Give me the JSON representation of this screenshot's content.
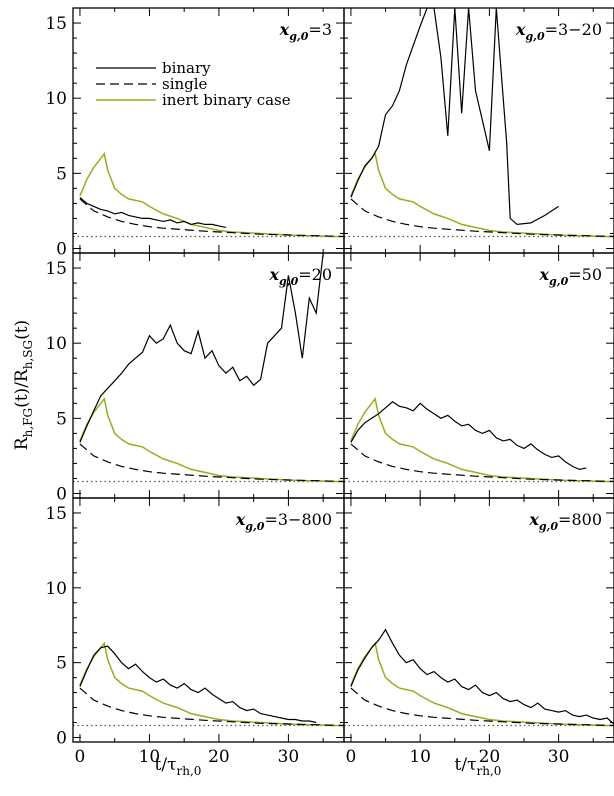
{
  "colors": {
    "binary": "#000000",
    "single": "#000000",
    "inert": "#8db31f",
    "ref": "#555555"
  },
  "axes": {
    "x_title_main": "t/τ",
    "x_title_sub": "rh,0",
    "y_title": "R",
    "y_title_parts": [
      "R",
      "h,FG",
      "(t)/R",
      "h,SG",
      "(t)"
    ],
    "x_ticks": [
      0,
      10,
      20,
      30
    ],
    "y_ticks": [
      0,
      5,
      10,
      15
    ]
  },
  "legend": {
    "entries": [
      {
        "label": "binary",
        "series": "binary"
      },
      {
        "label": "single",
        "series": "single"
      },
      {
        "label": "inert binary case",
        "series": "inert"
      }
    ]
  },
  "chart_data": [
    {
      "type": "line",
      "panel": "x_g0_3",
      "label_main": "x",
      "label_sub": "g,0",
      "label_value": "=3",
      "xlim": [
        -1,
        38
      ],
      "ylim": [
        -0.3,
        16
      ],
      "series": [
        {
          "key": "binary",
          "name": "binary",
          "x": [
            0,
            1,
            2,
            3,
            4,
            5,
            6,
            7,
            8,
            9,
            10,
            11,
            12,
            13,
            14,
            15,
            16,
            17,
            18,
            19,
            20,
            21
          ],
          "y": [
            3.4,
            3.0,
            2.8,
            2.6,
            2.5,
            2.3,
            2.4,
            2.2,
            2.1,
            2.0,
            2.0,
            1.9,
            1.8,
            1.9,
            1.7,
            1.8,
            1.6,
            1.7,
            1.6,
            1.6,
            1.5,
            1.4
          ]
        },
        {
          "key": "single",
          "name": "single",
          "x": [
            0,
            2,
            4,
            6,
            8,
            10,
            12,
            15,
            18,
            22,
            26,
            30,
            34,
            38
          ],
          "y": [
            3.3,
            2.5,
            2.1,
            1.8,
            1.6,
            1.45,
            1.35,
            1.25,
            1.15,
            1.05,
            0.95,
            0.9,
            0.85,
            0.8
          ]
        },
        {
          "key": "inert",
          "name": "inert binary case",
          "x": [
            0,
            1,
            2,
            3,
            3.5,
            4,
            5,
            6,
            7,
            8,
            9,
            10,
            12,
            14,
            16,
            18,
            20,
            22,
            24,
            26,
            28,
            30,
            32,
            34,
            36,
            38
          ],
          "y": [
            3.5,
            4.6,
            5.4,
            6.0,
            6.3,
            5.2,
            4.0,
            3.6,
            3.3,
            3.2,
            3.1,
            2.8,
            2.3,
            2.0,
            1.6,
            1.4,
            1.2,
            1.1,
            1.05,
            1.0,
            0.95,
            0.9,
            0.85,
            0.85,
            0.8,
            0.8
          ]
        }
      ]
    },
    {
      "type": "line",
      "panel": "x_g0_3_20",
      "label_main": "x",
      "label_sub": "g,0",
      "label_value": "=3−20",
      "xlim": [
        -1,
        38
      ],
      "ylim": [
        -0.3,
        16
      ],
      "series": [
        {
          "key": "binary",
          "name": "binary",
          "x": [
            0,
            1,
            2,
            3,
            4,
            5,
            6,
            7,
            8,
            9,
            10,
            11,
            12,
            13,
            14,
            15,
            16,
            17,
            18,
            19,
            20,
            21,
            22,
            22.5,
            23,
            24,
            26,
            28,
            30
          ],
          "y": [
            3.4,
            4.5,
            5.5,
            6.0,
            6.8,
            8.9,
            9.5,
            10.5,
            12.2,
            13.5,
            14.8,
            16,
            16,
            12.7,
            7.5,
            16,
            9.0,
            16,
            10.5,
            8.5,
            6.5,
            16,
            10.0,
            7.0,
            2.0,
            1.6,
            1.7,
            2.2,
            2.8
          ]
        },
        {
          "key": "single",
          "name": "single",
          "x": [
            0,
            2,
            4,
            6,
            8,
            10,
            12,
            15,
            18,
            22,
            26,
            30,
            34,
            38
          ],
          "y": [
            3.3,
            2.5,
            2.1,
            1.8,
            1.6,
            1.45,
            1.35,
            1.25,
            1.15,
            1.05,
            0.95,
            0.9,
            0.85,
            0.8
          ]
        },
        {
          "key": "inert",
          "name": "inert binary case",
          "x": [
            0,
            1,
            2,
            3,
            3.5,
            4,
            5,
            6,
            7,
            8,
            9,
            10,
            12,
            14,
            16,
            18,
            20,
            22,
            24,
            26,
            28,
            30,
            32,
            34,
            36,
            38
          ],
          "y": [
            3.5,
            4.6,
            5.4,
            6.0,
            6.3,
            5.2,
            4.0,
            3.6,
            3.3,
            3.2,
            3.1,
            2.8,
            2.3,
            2.0,
            1.6,
            1.4,
            1.2,
            1.1,
            1.05,
            1.0,
            0.95,
            0.9,
            0.85,
            0.85,
            0.8,
            0.8
          ]
        }
      ]
    },
    {
      "type": "line",
      "panel": "x_g0_20",
      "label_main": "x",
      "label_sub": "g,0",
      "label_value": "=20",
      "xlim": [
        -1,
        38
      ],
      "ylim": [
        -0.3,
        16
      ],
      "series": [
        {
          "key": "binary",
          "name": "binary",
          "x": [
            0,
            1,
            2,
            3,
            4,
            5,
            6,
            7,
            8,
            9,
            10,
            11,
            12,
            13,
            14,
            15,
            16,
            17,
            18,
            19,
            20,
            21,
            22,
            23,
            24,
            25,
            26,
            27,
            28,
            29,
            30,
            31,
            32,
            33,
            34,
            35
          ],
          "y": [
            3.4,
            4.5,
            5.5,
            6.5,
            7.0,
            7.5,
            8.0,
            8.6,
            9.0,
            9.4,
            10.5,
            10.0,
            10.3,
            11.2,
            10.0,
            9.5,
            9.3,
            10.8,
            9.0,
            9.5,
            8.5,
            8.0,
            8.4,
            7.5,
            7.8,
            7.2,
            7.6,
            10.0,
            10.5,
            11.0,
            14.5,
            12.0,
            9.0,
            13.0,
            12.0,
            16
          ]
        },
        {
          "key": "single",
          "name": "single",
          "x": [
            0,
            2,
            4,
            6,
            8,
            10,
            12,
            15,
            18,
            22,
            26,
            30,
            34,
            38
          ],
          "y": [
            3.3,
            2.5,
            2.1,
            1.8,
            1.6,
            1.45,
            1.35,
            1.25,
            1.15,
            1.05,
            0.95,
            0.9,
            0.85,
            0.8
          ]
        },
        {
          "key": "inert",
          "name": "inert binary case",
          "x": [
            0,
            1,
            2,
            3,
            3.5,
            4,
            5,
            6,
            7,
            8,
            9,
            10,
            12,
            14,
            16,
            18,
            20,
            22,
            24,
            26,
            28,
            30,
            32,
            34,
            36,
            38
          ],
          "y": [
            3.5,
            4.6,
            5.4,
            6.0,
            6.3,
            5.2,
            4.0,
            3.6,
            3.3,
            3.2,
            3.1,
            2.8,
            2.3,
            2.0,
            1.6,
            1.4,
            1.2,
            1.1,
            1.05,
            1.0,
            0.95,
            0.9,
            0.85,
            0.85,
            0.8,
            0.8
          ]
        }
      ]
    },
    {
      "type": "line",
      "panel": "x_g0_50",
      "label_main": "x",
      "label_sub": "g,0",
      "label_value": "=50",
      "xlim": [
        -1,
        38
      ],
      "ylim": [
        -0.3,
        16
      ],
      "series": [
        {
          "key": "binary",
          "name": "binary",
          "x": [
            0,
            1,
            2,
            3,
            4,
            5,
            6,
            7,
            8,
            9,
            10,
            11,
            12,
            13,
            14,
            15,
            16,
            17,
            18,
            19,
            20,
            21,
            22,
            23,
            24,
            25,
            26,
            27,
            28,
            29,
            30,
            31,
            32,
            33,
            34
          ],
          "y": [
            3.4,
            4.2,
            4.7,
            5.0,
            5.3,
            5.7,
            6.1,
            5.8,
            5.7,
            5.5,
            6.0,
            5.6,
            5.3,
            5.0,
            5.2,
            4.8,
            4.5,
            4.6,
            4.2,
            4.0,
            4.2,
            3.7,
            3.5,
            3.6,
            3.2,
            3.0,
            3.3,
            2.9,
            2.6,
            2.4,
            2.5,
            2.1,
            1.8,
            1.6,
            1.7
          ]
        },
        {
          "key": "single",
          "name": "single",
          "x": [
            0,
            2,
            4,
            6,
            8,
            10,
            12,
            15,
            18,
            22,
            26,
            30,
            34,
            38
          ],
          "y": [
            3.3,
            2.5,
            2.1,
            1.8,
            1.6,
            1.45,
            1.35,
            1.25,
            1.15,
            1.05,
            0.95,
            0.9,
            0.85,
            0.8
          ]
        },
        {
          "key": "inert",
          "name": "inert binary case",
          "x": [
            0,
            1,
            2,
            3,
            3.5,
            4,
            5,
            6,
            7,
            8,
            9,
            10,
            12,
            14,
            16,
            18,
            20,
            22,
            24,
            26,
            28,
            30,
            32,
            34,
            36,
            38
          ],
          "y": [
            3.5,
            4.6,
            5.4,
            6.0,
            6.3,
            5.2,
            4.0,
            3.6,
            3.3,
            3.2,
            3.1,
            2.8,
            2.3,
            2.0,
            1.6,
            1.4,
            1.2,
            1.1,
            1.05,
            1.0,
            0.95,
            0.9,
            0.85,
            0.85,
            0.8,
            0.8
          ]
        }
      ]
    },
    {
      "type": "line",
      "panel": "x_g0_3_800",
      "label_main": "x",
      "label_sub": "g,0",
      "label_value": "=3−800",
      "xlim": [
        -1,
        38
      ],
      "ylim": [
        -0.3,
        16
      ],
      "series": [
        {
          "key": "binary",
          "name": "binary",
          "x": [
            0,
            1,
            2,
            3,
            4,
            5,
            6,
            7,
            8,
            9,
            10,
            11,
            12,
            13,
            14,
            15,
            16,
            17,
            18,
            19,
            20,
            21,
            22,
            23,
            24,
            25,
            26,
            27,
            28,
            29,
            30,
            31,
            32,
            33,
            34
          ],
          "y": [
            3.4,
            4.5,
            5.5,
            6.0,
            6.1,
            5.6,
            5.0,
            4.6,
            4.9,
            4.4,
            4.0,
            3.7,
            3.9,
            3.5,
            3.3,
            3.6,
            3.2,
            3.0,
            3.3,
            2.9,
            2.6,
            2.3,
            2.4,
            2.0,
            1.8,
            1.9,
            1.6,
            1.5,
            1.4,
            1.3,
            1.2,
            1.2,
            1.1,
            1.1,
            1.0
          ]
        },
        {
          "key": "single",
          "name": "single",
          "x": [
            0,
            2,
            4,
            6,
            8,
            10,
            12,
            15,
            18,
            22,
            26,
            30,
            34,
            38
          ],
          "y": [
            3.3,
            2.5,
            2.1,
            1.8,
            1.6,
            1.45,
            1.35,
            1.25,
            1.15,
            1.05,
            0.95,
            0.9,
            0.85,
            0.8
          ]
        },
        {
          "key": "inert",
          "name": "inert binary case",
          "x": [
            0,
            1,
            2,
            3,
            3.5,
            4,
            5,
            6,
            7,
            8,
            9,
            10,
            12,
            14,
            16,
            18,
            20,
            22,
            24,
            26,
            28,
            30,
            32,
            34,
            36,
            38
          ],
          "y": [
            3.5,
            4.6,
            5.4,
            6.0,
            6.3,
            5.2,
            4.0,
            3.6,
            3.3,
            3.2,
            3.1,
            2.8,
            2.3,
            2.0,
            1.6,
            1.4,
            1.2,
            1.1,
            1.05,
            1.0,
            0.95,
            0.9,
            0.85,
            0.85,
            0.8,
            0.8
          ]
        }
      ]
    },
    {
      "type": "line",
      "panel": "x_g0_800",
      "label_main": "x",
      "label_sub": "g,0",
      "label_value": "=800",
      "xlim": [
        -1,
        38
      ],
      "ylim": [
        -0.3,
        16
      ],
      "series": [
        {
          "key": "binary",
          "name": "binary",
          "x": [
            0,
            1,
            2,
            3,
            4,
            5,
            6,
            7,
            8,
            9,
            10,
            11,
            12,
            13,
            14,
            15,
            16,
            17,
            18,
            19,
            20,
            21,
            22,
            23,
            24,
            25,
            26,
            27,
            28,
            29,
            30,
            31,
            32,
            33,
            34,
            35,
            36,
            37,
            38
          ],
          "y": [
            3.4,
            4.5,
            5.3,
            6.0,
            6.5,
            7.2,
            6.3,
            5.5,
            5.0,
            5.2,
            4.6,
            4.2,
            4.4,
            4.0,
            3.7,
            3.9,
            3.4,
            3.2,
            3.5,
            3.0,
            2.8,
            3.0,
            2.6,
            2.4,
            2.5,
            2.2,
            2.0,
            2.3,
            1.9,
            1.8,
            1.7,
            1.8,
            1.5,
            1.4,
            1.5,
            1.3,
            1.2,
            1.3,
            0.9
          ]
        },
        {
          "key": "single",
          "name": "single",
          "x": [
            0,
            2,
            4,
            6,
            8,
            10,
            12,
            15,
            18,
            22,
            26,
            30,
            34,
            38
          ],
          "y": [
            3.3,
            2.5,
            2.1,
            1.8,
            1.6,
            1.45,
            1.35,
            1.25,
            1.15,
            1.05,
            0.95,
            0.9,
            0.85,
            0.8
          ]
        },
        {
          "key": "inert",
          "name": "inert binary case",
          "x": [
            0,
            1,
            2,
            3,
            3.5,
            4,
            5,
            6,
            7,
            8,
            9,
            10,
            12,
            14,
            16,
            18,
            20,
            22,
            24,
            26,
            28,
            30,
            32,
            34,
            36,
            38
          ],
          "y": [
            3.5,
            4.6,
            5.4,
            6.0,
            6.3,
            5.2,
            4.0,
            3.6,
            3.3,
            3.2,
            3.1,
            2.8,
            2.3,
            2.0,
            1.6,
            1.4,
            1.2,
            1.1,
            1.05,
            1.0,
            0.95,
            0.9,
            0.85,
            0.85,
            0.8,
            0.8
          ]
        }
      ]
    }
  ]
}
